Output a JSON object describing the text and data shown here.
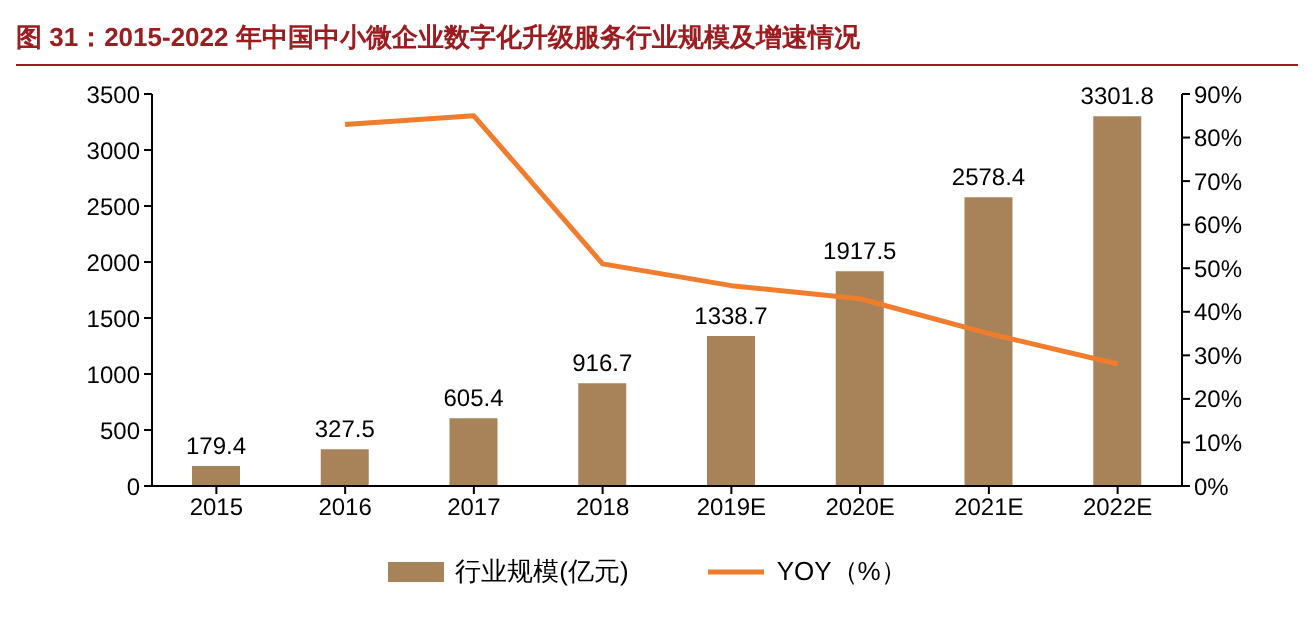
{
  "chart_data": {
    "type": "bar",
    "title": "图 31：2015-2022 年中国中小微企业数字化升级服务行业规模及增速情况",
    "categories": [
      "2015",
      "2016",
      "2017",
      "2018",
      "2019E",
      "2020E",
      "2021E",
      "2022E"
    ],
    "series": [
      {
        "name": "行业规模(亿元)",
        "color": "#a8835a",
        "values": [
          179.4,
          327.5,
          605.4,
          916.7,
          1338.7,
          1917.5,
          2578.4,
          3301.8
        ],
        "data_labels": true
      },
      {
        "name": "YOY（%）",
        "type": "line",
        "axis": "y2",
        "color": "#f07c2e",
        "values": [
          null,
          83,
          85,
          51,
          46,
          43,
          35,
          28
        ]
      }
    ],
    "ylim": [
      0,
      3500
    ],
    "yticks": [
      0,
      500,
      1000,
      1500,
      2000,
      2500,
      3000,
      3500
    ],
    "y2lim": [
      0,
      90
    ],
    "y2ticks": [
      {
        "value": 0,
        "label": "0%"
      },
      {
        "value": 10,
        "label": "10%"
      },
      {
        "value": 20,
        "label": "20%"
      },
      {
        "value": 30,
        "label": "30%"
      },
      {
        "value": 40,
        "label": "40%"
      },
      {
        "value": 50,
        "label": "50%"
      },
      {
        "value": 60,
        "label": "60%"
      },
      {
        "value": 70,
        "label": "70%"
      },
      {
        "value": 80,
        "label": "80%"
      },
      {
        "value": 90,
        "label": "90%"
      }
    ],
    "grid": false,
    "legend": "bottom",
    "marker": "none"
  }
}
